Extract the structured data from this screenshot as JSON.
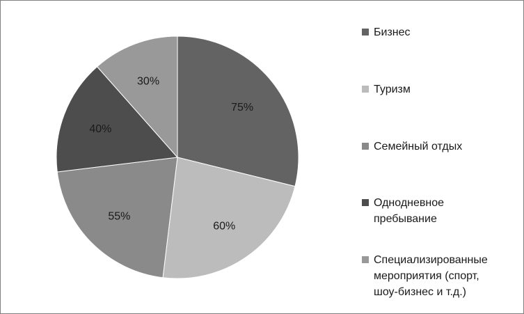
{
  "chart_data": {
    "type": "pie",
    "categories": [
      "Бизнес",
      "Туризм",
      "Семейный отдых",
      "Однодневное пребывание",
      "Специализированные мероприятия (спорт, шоу-бизнес и т.д.)"
    ],
    "values": [
      75,
      60,
      55,
      40,
      30
    ],
    "labels": [
      "75%",
      "60%",
      "55%",
      "40%",
      "30%"
    ],
    "colors": [
      "#636363",
      "#bcbcbc",
      "#8a8a8a",
      "#4d4d4d",
      "#999999"
    ],
    "legend_position": "right",
    "title": ""
  },
  "legend": [
    {
      "text": "Бизнес"
    },
    {
      "text": "Туризм"
    },
    {
      "text": "Семейный отдых"
    },
    {
      "text": "Однодневное\nпребывание"
    },
    {
      "text": "Специализированные\nмероприятия (спорт,\nшоу-бизнес и т.д.)"
    }
  ]
}
